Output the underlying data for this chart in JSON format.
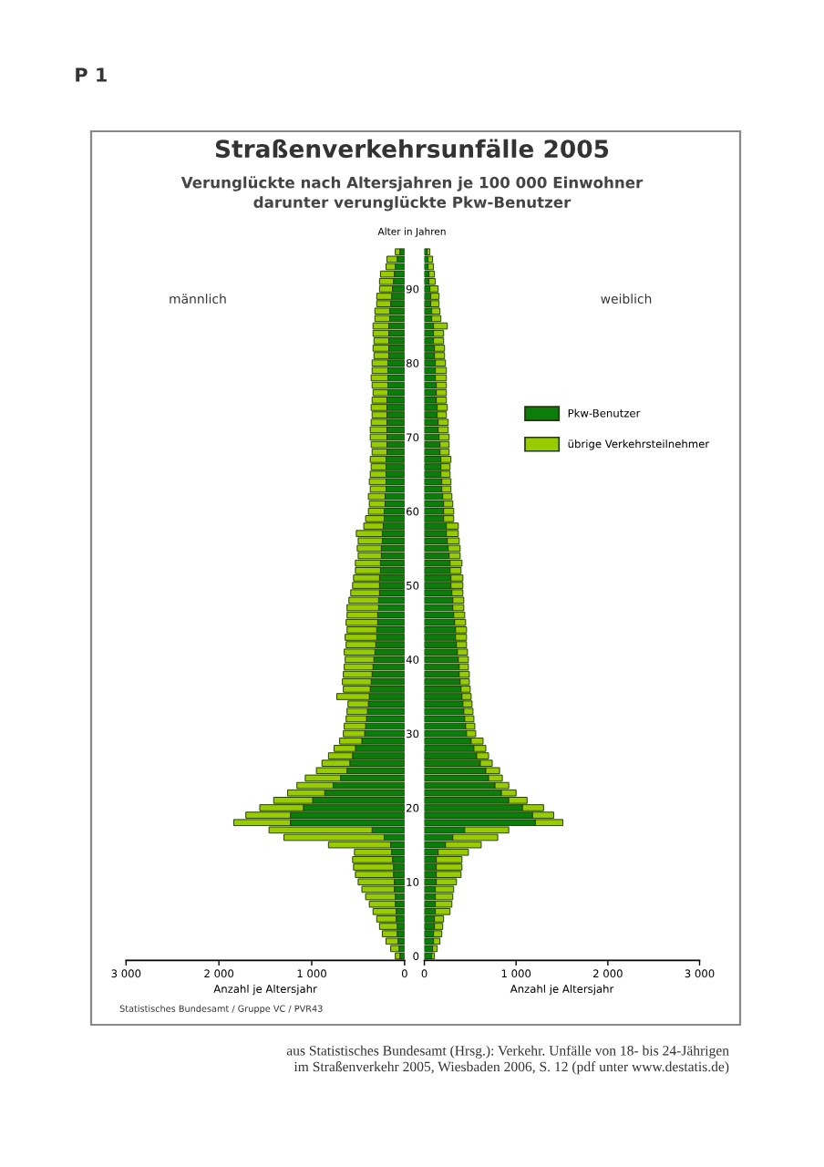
{
  "chart_data": [
    {
      "type": "bar",
      "orientation": "horizontal",
      "stacked": true,
      "title": "Straßenverkehrsunfälle 2005",
      "subtitle": "Verunglückte nach Altersjahren je 100 000 Einwohner\ndarunter verunglückte Pkw-Benutzer",
      "xlabel": "Anzahl je Altersjahr",
      "annotations": [
        "männlich",
        "P 1",
        "Statistisches Bundesamt / Gruppe VC / PVR43",
        "aus Statistisches Bundesamt (Hrsg.): Verkehr. Unfälle von 18- bis 24-Jährigen\nim Straßenverkehr 2005, Wiesbaden 2006, S. 12 (pdf unter www.destatis.de)"
      ],
      "categories": [
        null,
        null,
        null,
        null,
        null,
        "90",
        null,
        null,
        null,
        null,
        null,
        null,
        null,
        null,
        null,
        "80",
        null,
        null,
        null,
        null,
        null,
        null,
        null,
        null,
        null,
        "70",
        null,
        null,
        null,
        null,
        null,
        null,
        null,
        null,
        null,
        "60",
        null,
        null,
        null,
        null,
        null,
        null,
        null,
        null,
        null,
        "50",
        null,
        null,
        null,
        null,
        null,
        null,
        null,
        null,
        null,
        "40",
        null,
        null,
        null,
        null,
        null,
        null,
        null,
        null,
        null,
        "30",
        null,
        null,
        null,
        null,
        null,
        null,
        null,
        null,
        null,
        "20",
        null,
        null,
        null,
        null,
        null,
        null,
        null,
        null,
        null,
        "10",
        null,
        null,
        null,
        null,
        null,
        null,
        null,
        null,
        null,
        "0"
      ],
      "xlim": [
        3000,
        0
      ],
      "xticks": [
        {
          "value": 3000,
          "label": "3 000"
        },
        {
          "value": 2000,
          "label": "2 000"
        },
        {
          "value": 1000,
          "label": "1 000"
        },
        0
      ],
      "tick_labels": "x",
      "grid": false,
      "series": [
        {
          "color": "#0a7d0a",
          "values": [
            50,
            80,
            100,
            110,
            120,
            130,
            140,
            150,
            160,
            160,
            170,
            170,
            170,
            170,
            170,
            180,
            180,
            180,
            180,
            180,
            190,
            190,
            190,
            190,
            190,
            190,
            190,
            190,
            200,
            200,
            200,
            200,
            200,
            210,
            210,
            220,
            220,
            230,
            240,
            240,
            250,
            250,
            260,
            260,
            270,
            270,
            270,
            280,
            280,
            290,
            290,
            300,
            300,
            310,
            320,
            330,
            340,
            350,
            360,
            370,
            380,
            390,
            400,
            410,
            420,
            430,
            460,
            530,
            560,
            590,
            620,
            690,
            770,
            860,
            990,
            1090,
            1230,
            1230,
            350,
            220,
            150,
            140,
            130,
            120,
            120,
            110,
            110,
            100,
            100,
            90,
            90,
            80,
            80,
            70,
            60,
            50
          ]
        },
        {
          "color": "#99cc00",
          "values": [
            50,
            110,
            100,
            150,
            150,
            140,
            160,
            150,
            160,
            160,
            170,
            170,
            160,
            170,
            160,
            170,
            170,
            180,
            170,
            160,
            160,
            170,
            160,
            170,
            180,
            180,
            170,
            160,
            170,
            160,
            170,
            180,
            170,
            180,
            170,
            170,
            200,
            210,
            280,
            260,
            260,
            250,
            270,
            270,
            280,
            290,
            310,
            320,
            340,
            330,
            340,
            320,
            340,
            320,
            330,
            310,
            310,
            310,
            310,
            290,
            350,
            220,
            220,
            220,
            230,
            230,
            240,
            230,
            260,
            300,
            330,
            380,
            390,
            400,
            420,
            470,
            480,
            610,
            1110,
            1080,
            670,
            400,
            430,
            430,
            410,
            390,
            350,
            320,
            280,
            250,
            210,
            190,
            160,
            130,
            90,
            50
          ]
        }
      ]
    },
    {
      "type": "bar",
      "orientation": "horizontal",
      "stacked": true,
      "xlabel": "Anzahl je Altersjahr",
      "ylabel": "Alter in Jahren",
      "annotations": [
        "weiblich"
      ],
      "legend": "right",
      "categories": [
        null,
        null,
        null,
        null,
        null,
        "90",
        null,
        null,
        null,
        null,
        null,
        null,
        null,
        null,
        null,
        "80",
        null,
        null,
        null,
        null,
        null,
        null,
        null,
        null,
        null,
        "70",
        null,
        null,
        null,
        null,
        null,
        null,
        null,
        null,
        null,
        "60",
        null,
        null,
        null,
        null,
        null,
        null,
        null,
        null,
        null,
        "50",
        null,
        null,
        null,
        null,
        null,
        null,
        null,
        null,
        null,
        "40",
        null,
        null,
        null,
        null,
        null,
        null,
        null,
        null,
        null,
        "30",
        null,
        null,
        null,
        null,
        null,
        null,
        null,
        null,
        null,
        "20",
        null,
        null,
        null,
        null,
        null,
        null,
        null,
        null,
        null,
        "10",
        null,
        null,
        null,
        null,
        null,
        null,
        null,
        null,
        null,
        "0"
      ],
      "xlim": [
        0,
        3000
      ],
      "xticks": [
        0,
        {
          "value": 1000,
          "label": "1 000"
        },
        {
          "value": 2000,
          "label": "2 000"
        },
        {
          "value": 3000,
          "label": "3 000"
        }
      ],
      "grid": false,
      "series": [
        {
          "name": "Pkw-Benutzer",
          "color": "#0a7d0a",
          "values": [
            30,
            40,
            40,
            50,
            50,
            60,
            70,
            70,
            80,
            80,
            100,
            100,
            100,
            110,
            110,
            120,
            120,
            120,
            130,
            130,
            130,
            140,
            140,
            150,
            150,
            160,
            170,
            170,
            180,
            180,
            180,
            190,
            190,
            200,
            210,
            210,
            210,
            240,
            240,
            250,
            260,
            270,
            280,
            280,
            290,
            290,
            300,
            310,
            310,
            320,
            330,
            340,
            340,
            350,
            360,
            370,
            380,
            380,
            390,
            400,
            410,
            420,
            430,
            440,
            450,
            460,
            510,
            540,
            570,
            610,
            670,
            700,
            770,
            840,
            920,
            1070,
            1180,
            1210,
            440,
            310,
            230,
            150,
            130,
            130,
            130,
            130,
            120,
            120,
            120,
            120,
            110,
            110,
            100,
            100,
            90,
            80
          ]
        },
        {
          "name": "übrige Verkehrsteilnehmer",
          "color": "#99cc00",
          "values": [
            30,
            50,
            60,
            60,
            70,
            90,
            90,
            90,
            90,
            100,
            150,
            110,
            110,
            110,
            110,
            110,
            120,
            120,
            110,
            110,
            110,
            110,
            100,
            110,
            110,
            110,
            100,
            100,
            110,
            100,
            100,
            100,
            100,
            100,
            100,
            110,
            110,
            130,
            130,
            130,
            130,
            120,
            130,
            120,
            130,
            130,
            120,
            120,
            120,
            120,
            120,
            120,
            120,
            110,
            110,
            110,
            100,
            110,
            100,
            100,
            100,
            100,
            100,
            100,
            100,
            100,
            130,
            130,
            130,
            130,
            150,
            150,
            150,
            160,
            200,
            230,
            230,
            300,
            480,
            490,
            390,
            330,
            280,
            280,
            270,
            220,
            200,
            190,
            180,
            160,
            100,
            90,
            90,
            70,
            50,
            30
          ]
        }
      ]
    }
  ]
}
